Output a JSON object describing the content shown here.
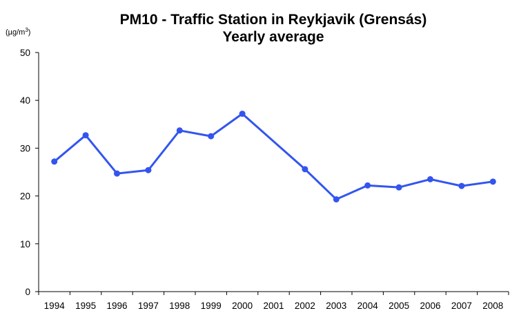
{
  "chart_data": {
    "type": "line",
    "title": "PM10 - Traffic Station in Reykjavik (Grensás)",
    "subtitle": "Yearly average",
    "ylabel": "(µg/m",
    "ylabel_superscript": "3",
    "ylabel_close": ")",
    "xlabel": "",
    "ylim": [
      0,
      50
    ],
    "yticks": [
      "0",
      "10",
      "20",
      "30",
      "40",
      "50"
    ],
    "grid": false,
    "categories": [
      "1994",
      "1995",
      "1996",
      "1997",
      "1998",
      "1999",
      "2000",
      "2001",
      "2002",
      "2003",
      "2004",
      "2005",
      "2006",
      "2007",
      "2008"
    ],
    "series": [
      {
        "color": "#3355ee",
        "points": [
          {
            "x": "1994",
            "y": 27.2
          },
          {
            "x": "1995",
            "y": 32.7
          },
          {
            "x": "1996",
            "y": 24.7
          },
          {
            "x": "1997",
            "y": 25.4
          },
          {
            "x": "1998",
            "y": 33.7
          },
          {
            "x": "1999",
            "y": 32.5
          },
          {
            "x": "2000",
            "y": 37.2
          },
          {
            "x": "2002",
            "y": 25.6
          },
          {
            "x": "2003",
            "y": 19.3
          },
          {
            "x": "2004",
            "y": 22.2
          },
          {
            "x": "2005",
            "y": 21.8
          },
          {
            "x": "2006",
            "y": 23.5
          },
          {
            "x": "2007",
            "y": 22.1
          },
          {
            "x": "2008",
            "y": 23.0
          }
        ]
      }
    ]
  }
}
